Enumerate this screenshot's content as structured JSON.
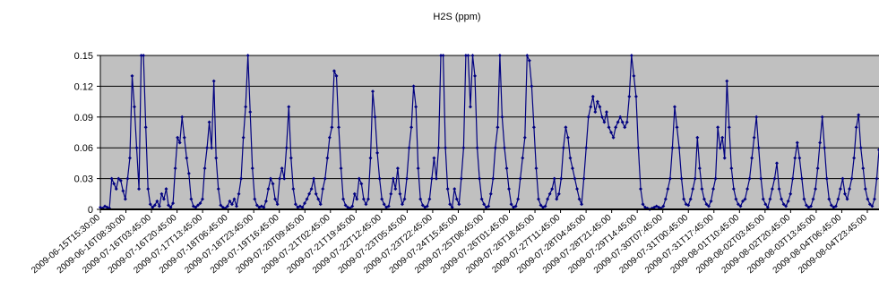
{
  "chart_data": {
    "type": "line",
    "title": "H2S (ppm)",
    "xlabel": "",
    "ylabel": "",
    "ylim": [
      0,
      0.15
    ],
    "yticks": [
      "0",
      "0.03",
      "0.06",
      "0.09",
      "0.12",
      "0.15"
    ],
    "grid": true,
    "legend": "none",
    "colors": {
      "line": "#000080",
      "plot_bg": "#c0c0c0",
      "grid": "#000000"
    },
    "x_ticks": [
      "2009-06-15T15:30:00",
      "2009-06-16T08:30:00",
      "2009-07-16T03:45:00",
      "2009-07-16T20:45:00",
      "2009-07-17T13:45:00",
      "2009-07-18T06:45:00",
      "2009-07-18T23:45:00",
      "2009-07-19T16:45:00",
      "2009-07-20T09:45:00",
      "2009-07-21T02:45:00",
      "2009-07-21T19:45:00",
      "2009-07-22T12:45:00",
      "2009-07-23T05:45:00",
      "2009-07-23T22:45:00",
      "2009-07-24T15:45:00",
      "2009-07-25T08:45:00",
      "2009-07-26T01:45:00",
      "2009-07-26T18:45:00",
      "2009-07-27T11:45:00",
      "2009-07-28T04:45:00",
      "2009-07-28T21:45:00",
      "2009-07-29T14:45:00",
      "2009-07-30T07:45:00",
      "2009-07-31T00:45:00",
      "2009-07-31T17:45:00",
      "2009-08-01T10:45:00",
      "2009-08-02T03:45:00",
      "2009-08-02T20:45:00",
      "2009-08-03T13:45:00",
      "2009-08-04T06:45:00",
      "2009-08-04T23:45:00"
    ],
    "series": [
      {
        "values": [
          0.002,
          0.001,
          0.003,
          0.002,
          0.001,
          0.03,
          0.025,
          0.02,
          0.03,
          0.028,
          0.018,
          0.01,
          0.03,
          0.05,
          0.13,
          0.1,
          0.06,
          0.02,
          0.15,
          0.15,
          0.08,
          0.02,
          0.005,
          0.002,
          0.004,
          0.008,
          0.003,
          0.015,
          0.01,
          0.02,
          0.004,
          0.002,
          0.006,
          0.04,
          0.07,
          0.065,
          0.09,
          0.07,
          0.05,
          0.035,
          0.01,
          0.003,
          0.002,
          0.004,
          0.006,
          0.01,
          0.04,
          0.06,
          0.085,
          0.06,
          0.125,
          0.05,
          0.02,
          0.004,
          0.002,
          0.001,
          0.003,
          0.008,
          0.005,
          0.01,
          0.003,
          0.015,
          0.03,
          0.07,
          0.1,
          0.15,
          0.095,
          0.04,
          0.01,
          0.004,
          0.002,
          0.003,
          0.002,
          0.008,
          0.02,
          0.03,
          0.025,
          0.01,
          0.005,
          0.03,
          0.04,
          0.03,
          0.06,
          0.1,
          0.05,
          0.02,
          0.005,
          0.002,
          0.003,
          0.002,
          0.006,
          0.01,
          0.015,
          0.02,
          0.03,
          0.015,
          0.01,
          0.005,
          0.02,
          0.03,
          0.05,
          0.07,
          0.08,
          0.135,
          0.13,
          0.08,
          0.04,
          0.01,
          0.004,
          0.002,
          0.001,
          0.003,
          0.015,
          0.01,
          0.03,
          0.025,
          0.01,
          0.005,
          0.01,
          0.05,
          0.115,
          0.09,
          0.055,
          0.03,
          0.01,
          0.005,
          0.002,
          0.003,
          0.015,
          0.03,
          0.02,
          0.04,
          0.015,
          0.005,
          0.01,
          0.03,
          0.06,
          0.08,
          0.12,
          0.1,
          0.04,
          0.01,
          0.004,
          0.002,
          0.003,
          0.01,
          0.03,
          0.05,
          0.03,
          0.06,
          0.15,
          0.15,
          0.06,
          0.02,
          0.005,
          0.002,
          0.02,
          0.01,
          0.005,
          0.03,
          0.06,
          0.15,
          0.15,
          0.1,
          0.15,
          0.13,
          0.06,
          0.03,
          0.01,
          0.005,
          0.002,
          0.003,
          0.015,
          0.03,
          0.06,
          0.08,
          0.15,
          0.09,
          0.06,
          0.04,
          0.02,
          0.005,
          0.002,
          0.003,
          0.01,
          0.03,
          0.05,
          0.07,
          0.15,
          0.145,
          0.12,
          0.08,
          0.04,
          0.01,
          0.004,
          0.002,
          0.003,
          0.01,
          0.015,
          0.02,
          0.03,
          0.01,
          0.015,
          0.03,
          0.06,
          0.08,
          0.07,
          0.05,
          0.04,
          0.03,
          0.02,
          0.01,
          0.005,
          0.03,
          0.06,
          0.09,
          0.1,
          0.11,
          0.095,
          0.105,
          0.1,
          0.09,
          0.085,
          0.095,
          0.08,
          0.075,
          0.07,
          0.08,
          0.085,
          0.09,
          0.085,
          0.08,
          0.085,
          0.11,
          0.15,
          0.13,
          0.11,
          0.06,
          0.02,
          0.005,
          0.002,
          0.001,
          0.0,
          0.001,
          0.002,
          0.003,
          0.002,
          0.001,
          0.003,
          0.01,
          0.02,
          0.03,
          0.06,
          0.1,
          0.08,
          0.06,
          0.03,
          0.01,
          0.005,
          0.004,
          0.01,
          0.02,
          0.03,
          0.07,
          0.04,
          0.02,
          0.01,
          0.005,
          0.003,
          0.008,
          0.02,
          0.03,
          0.08,
          0.06,
          0.07,
          0.05,
          0.125,
          0.08,
          0.04,
          0.02,
          0.01,
          0.005,
          0.003,
          0.008,
          0.01,
          0.02,
          0.03,
          0.05,
          0.07,
          0.09,
          0.06,
          0.03,
          0.01,
          0.005,
          0.002,
          0.01,
          0.02,
          0.03,
          0.045,
          0.02,
          0.01,
          0.005,
          0.003,
          0.008,
          0.015,
          0.03,
          0.05,
          0.065,
          0.05,
          0.03,
          0.01,
          0.004,
          0.002,
          0.003,
          0.01,
          0.02,
          0.04,
          0.065,
          0.09,
          0.06,
          0.03,
          0.01,
          0.004,
          0.002,
          0.003,
          0.01,
          0.02,
          0.03,
          0.015,
          0.01,
          0.02,
          0.03,
          0.05,
          0.08,
          0.092,
          0.06,
          0.04,
          0.02,
          0.01,
          0.005,
          0.003,
          0.01,
          0.03,
          0.058
        ]
      }
    ]
  }
}
